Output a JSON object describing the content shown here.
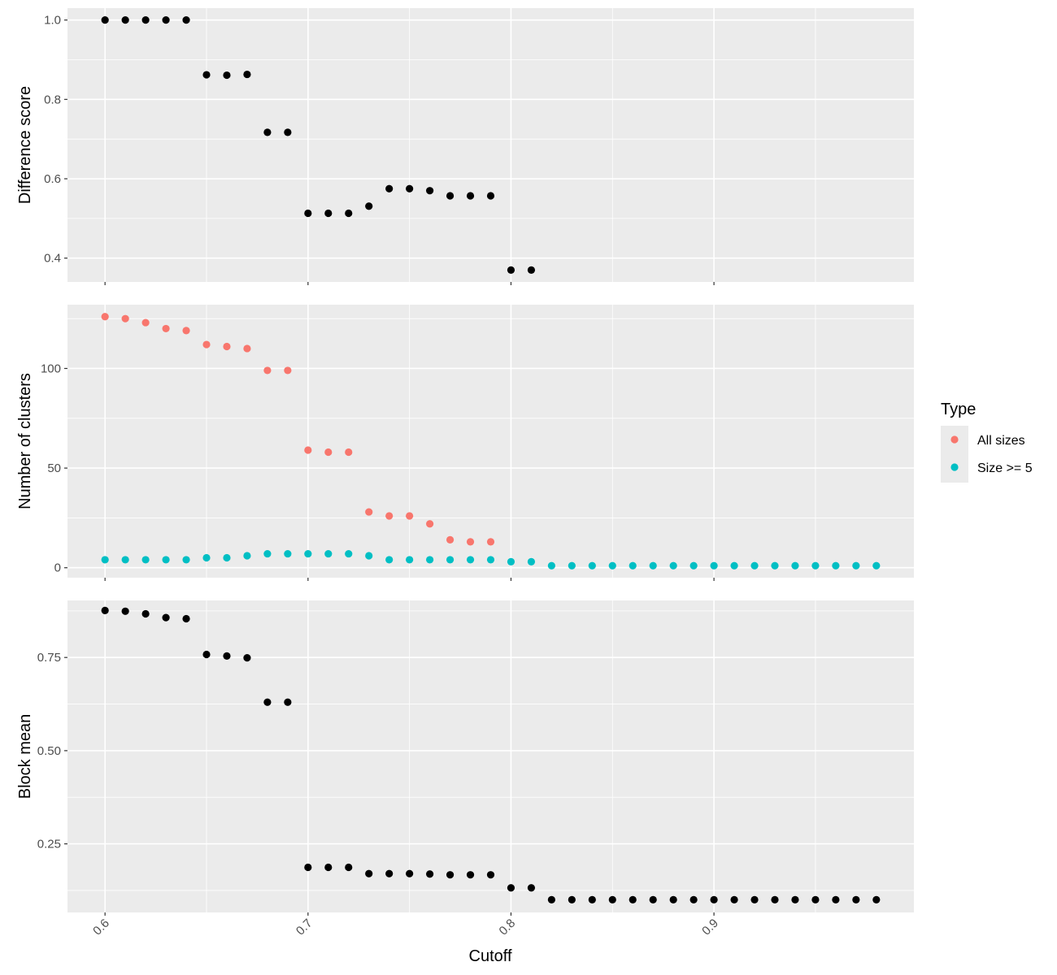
{
  "chart_data": {
    "type": "scatter",
    "xlabel": "Cutoff",
    "x_ticks": [
      "0.6",
      "0.7",
      "0.8",
      "0.9"
    ],
    "xlim": [
      0.5815,
      0.9985
    ],
    "colors": {
      "panel_background": "#ebebeb",
      "grid": "#ffffff",
      "points_default": "#000000",
      "all_sizes": "#f8766d",
      "size_ge_5": "#00bfc4"
    },
    "legend": {
      "title": "Type",
      "position": "right",
      "entries": [
        {
          "label": "All sizes",
          "color": "#f8766d"
        },
        {
          "label": "Size >= 5",
          "color": "#00bfc4"
        }
      ]
    },
    "panels": [
      {
        "ylabel": "Difference score",
        "ylim": [
          0.34,
          1.03
        ],
        "y_ticks": [
          "0.4",
          "0.6",
          "0.8",
          "1.0"
        ],
        "series": [
          {
            "color": "#000000",
            "x": [
              0.6,
              0.61,
              0.62,
              0.63,
              0.64,
              0.65,
              0.66,
              0.67,
              0.68,
              0.69,
              0.7,
              0.71,
              0.72,
              0.73,
              0.74,
              0.75,
              0.76,
              0.77,
              0.78,
              0.79,
              0.8,
              0.81
            ],
            "y": [
              1.0,
              1.0,
              1.0,
              1.0,
              1.0,
              0.862,
              0.861,
              0.863,
              0.717,
              0.717,
              0.513,
              0.513,
              0.513,
              0.531,
              0.575,
              0.575,
              0.57,
              0.557,
              0.557,
              0.557,
              0.37,
              0.37
            ]
          }
        ]
      },
      {
        "ylabel": "Number of clusters",
        "ylim": [
          -5,
          132
        ],
        "y_ticks": [
          "0",
          "50",
          "100"
        ],
        "series": [
          {
            "name": "All sizes",
            "color": "#f8766d",
            "x": [
              0.6,
              0.61,
              0.62,
              0.63,
              0.64,
              0.65,
              0.66,
              0.67,
              0.68,
              0.69,
              0.7,
              0.71,
              0.72,
              0.73,
              0.74,
              0.75,
              0.76,
              0.77,
              0.78,
              0.79
            ],
            "y": [
              126,
              125,
              123,
              120,
              119,
              112,
              111,
              110,
              99,
              99,
              59,
              58,
              58,
              28,
              26,
              26,
              22,
              14,
              13,
              13
            ]
          },
          {
            "name": "Size >= 5",
            "color": "#00bfc4",
            "x": [
              0.6,
              0.61,
              0.62,
              0.63,
              0.64,
              0.65,
              0.66,
              0.67,
              0.68,
              0.69,
              0.7,
              0.71,
              0.72,
              0.73,
              0.74,
              0.75,
              0.76,
              0.77,
              0.78,
              0.79,
              0.8,
              0.81,
              0.82,
              0.83,
              0.84,
              0.85,
              0.86,
              0.87,
              0.88,
              0.89,
              0.9,
              0.91,
              0.92,
              0.93,
              0.94,
              0.95,
              0.96,
              0.97,
              0.98
            ],
            "y": [
              4,
              4,
              4,
              4,
              4,
              5,
              5,
              6,
              7,
              7,
              7,
              7,
              7,
              6,
              4,
              4,
              4,
              4,
              4,
              4,
              3,
              3,
              1,
              1,
              1,
              1,
              1,
              1,
              1,
              1,
              1,
              1,
              1,
              1,
              1,
              1,
              1,
              1,
              1
            ]
          }
        ]
      },
      {
        "ylabel": "Block mean",
        "ylim": [
          0.066,
          0.903
        ],
        "y_ticks": [
          "0.25",
          "0.50",
          "0.75"
        ],
        "series": [
          {
            "color": "#000000",
            "x": [
              0.6,
              0.61,
              0.62,
              0.63,
              0.64,
              0.65,
              0.66,
              0.67,
              0.68,
              0.69,
              0.7,
              0.71,
              0.72,
              0.73,
              0.74,
              0.75,
              0.76,
              0.77,
              0.78,
              0.79,
              0.8,
              0.81,
              0.82,
              0.83,
              0.84,
              0.85,
              0.86,
              0.87,
              0.88,
              0.89,
              0.9,
              0.91,
              0.92,
              0.93,
              0.94,
              0.95,
              0.96,
              0.97,
              0.98
            ],
            "y": [
              0.876,
              0.874,
              0.867,
              0.857,
              0.854,
              0.758,
              0.754,
              0.749,
              0.63,
              0.63,
              0.187,
              0.187,
              0.187,
              0.17,
              0.17,
              0.17,
              0.169,
              0.167,
              0.167,
              0.167,
              0.132,
              0.132,
              0.1,
              0.1,
              0.1,
              0.1,
              0.1,
              0.1,
              0.1,
              0.1,
              0.1,
              0.1,
              0.1,
              0.1,
              0.1,
              0.1,
              0.1,
              0.1,
              0.1
            ]
          }
        ]
      }
    ]
  }
}
